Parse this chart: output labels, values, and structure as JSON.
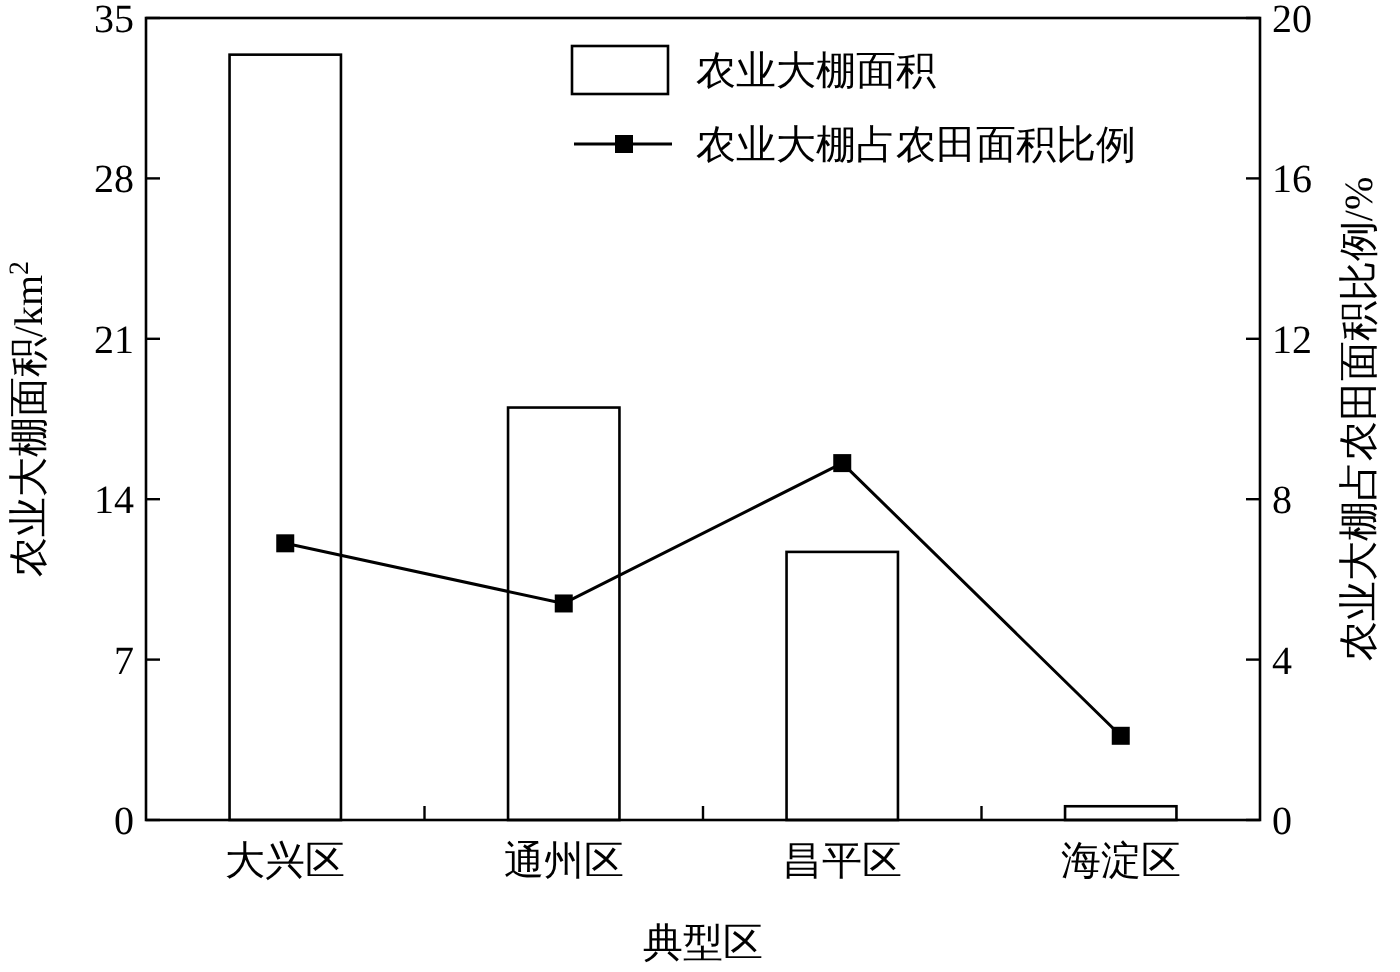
{
  "chart_data": {
    "type": "bar",
    "xlabel": "典型区",
    "ylabel": "农业大棚面积/km$^{2}$",
    "y2label": "农业大棚占农田面积比例/%",
    "categories": [
      "大兴区",
      "通州区",
      "昌平区",
      "海淀区"
    ],
    "series": [
      {
        "name": "农业大棚面积",
        "color": "#ffffff",
        "values": [
          33.4,
          18.0,
          11.7,
          0.6
        ]
      },
      {
        "name": "农业大棚占农田面积比例",
        "type": "line",
        "axis": "y2",
        "color": "#000000",
        "values": [
          6.9,
          5.4,
          8.9,
          2.1
        ]
      }
    ],
    "ylim": [
      0,
      35
    ],
    "yticks": [
      0,
      7,
      14,
      21,
      28,
      35
    ],
    "y2lim": [
      0,
      20
    ],
    "y2ticks": [
      0,
      4,
      8,
      12,
      16,
      20
    ],
    "marker": "square",
    "legend": "top right",
    "grid": false
  }
}
